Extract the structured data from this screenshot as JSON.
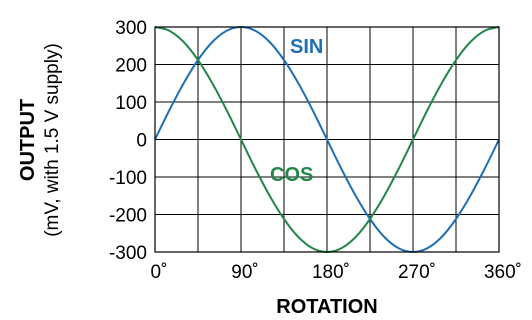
{
  "chart_data": {
    "type": "line",
    "xlabel": "ROTATION",
    "ylabel": "OUTPUT",
    "ylabel_sub": "(mV, with 1.5 V supply)",
    "xlim": [
      0,
      360
    ],
    "ylim": [
      -300,
      300
    ],
    "x_ticks": [
      0,
      90,
      180,
      270,
      360
    ],
    "x_tick_labels": [
      "0˚",
      "90˚",
      "180˚",
      "270˚",
      "360˚"
    ],
    "y_ticks": [
      300,
      200,
      100,
      0,
      -100,
      -200,
      -300
    ],
    "y_tick_labels": [
      "300",
      "200",
      "100",
      "0",
      "-100",
      "-200",
      "-300"
    ],
    "x_grid_lines": [
      0,
      45,
      90,
      135,
      180,
      225,
      270,
      315,
      360
    ],
    "y_grid_lines": [
      300,
      200,
      100,
      0,
      -100,
      -200,
      -300
    ],
    "grid": true,
    "series": [
      {
        "name": "SIN",
        "color": "#1f6fb5",
        "x": [
          0,
          15,
          30,
          45,
          60,
          75,
          90,
          105,
          120,
          135,
          150,
          165,
          180,
          195,
          210,
          225,
          240,
          255,
          270,
          285,
          300,
          315,
          330,
          345,
          360
        ],
        "values": [
          0,
          78,
          150,
          212,
          260,
          290,
          300,
          290,
          260,
          212,
          150,
          78,
          0,
          -78,
          -150,
          -212,
          -260,
          -290,
          -300,
          -290,
          -260,
          -212,
          -150,
          -78,
          0
        ]
      },
      {
        "name": "COS",
        "color": "#23874a",
        "x": [
          0,
          15,
          30,
          45,
          60,
          75,
          90,
          105,
          120,
          135,
          150,
          165,
          180,
          195,
          210,
          225,
          240,
          255,
          270,
          285,
          300,
          315,
          330,
          345,
          360
        ],
        "values": [
          300,
          290,
          260,
          212,
          150,
          78,
          0,
          -78,
          -150,
          -212,
          -260,
          -290,
          -300,
          -290,
          -260,
          -212,
          -150,
          -78,
          0,
          78,
          150,
          212,
          260,
          290,
          300
        ]
      }
    ]
  }
}
